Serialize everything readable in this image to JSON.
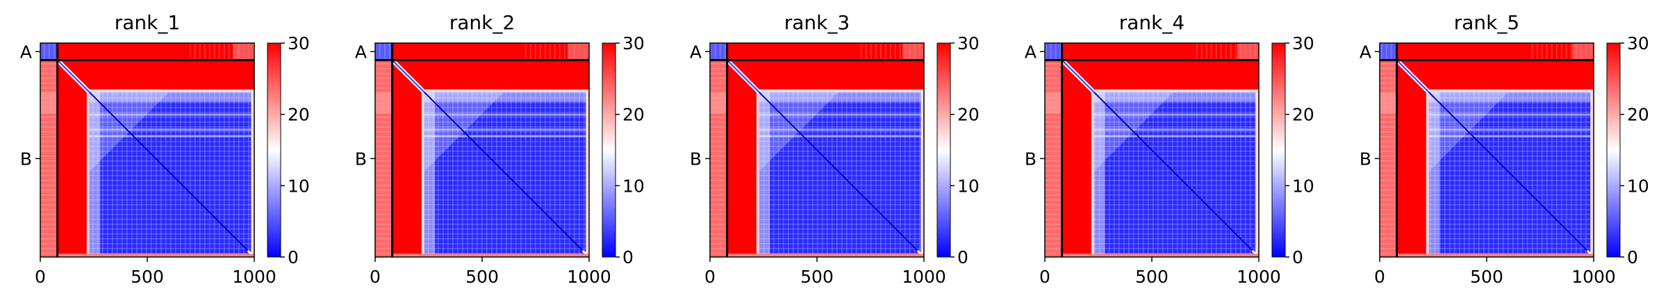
{
  "chart_data": {
    "type": "heatmap",
    "colormap": "bwr",
    "value_range": [
      0,
      30
    ],
    "colorbar_ticks": [
      0,
      10,
      20,
      30
    ],
    "x_ticks": [
      0,
      500,
      1000
    ],
    "xlim": [
      0,
      1000
    ],
    "ylim": [
      0,
      1000
    ],
    "chain_labels": [
      "A",
      "B"
    ],
    "chain_boundary": 80,
    "colors": {
      "low": "#0000ff",
      "mid": "#ffffff",
      "high": "#ff0000"
    },
    "panels": [
      {
        "title": "rank_1"
      },
      {
        "title": "rank_2"
      },
      {
        "title": "rank_3"
      },
      {
        "title": "rank_4"
      },
      {
        "title": "rank_5"
      }
    ]
  }
}
